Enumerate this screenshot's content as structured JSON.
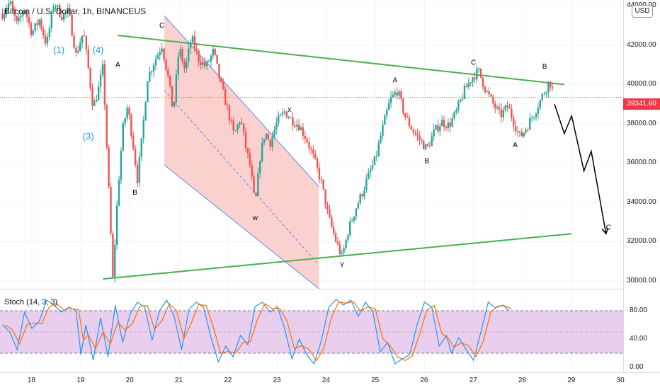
{
  "header": {
    "title": "Bitcoin / U.S. Dollar, 1h, BINANCEUS",
    "currency": "USD"
  },
  "current_price": {
    "value": 39341.6,
    "label": "39341.60",
    "color": "#f23645"
  },
  "colors": {
    "up_candle": "#26a69a",
    "down_candle": "#ef5350",
    "channel_fill": "#f9c9c7",
    "channel_border": "#5b8def",
    "trendline": "#4caf50",
    "stoch_k": "#2196f3",
    "stoch_d": "#ff6d00",
    "stoch_band": "#e1bee7",
    "wave_label": "#2196f3",
    "projection": "#000000"
  },
  "indicator": {
    "name": "Stoch (14, 3, 3)",
    "upper_band": 80,
    "lower_band": 20,
    "axis_labels": [
      "80.00",
      "40.00",
      "0.00"
    ]
  },
  "chart_data": {
    "type": "candlestick",
    "price_axis": {
      "ylim": [
        29600,
        44300
      ],
      "tick_labels": [
        "44000.00",
        "42000.00",
        "40000.00",
        "38000.00",
        "36000.00",
        "34000.00",
        "32000.00",
        "30000.00"
      ],
      "tick_values": [
        44000,
        42000,
        40000,
        38000,
        36000,
        34000,
        32000,
        30000
      ]
    },
    "time_axis": {
      "tick_labels": [
        "18",
        "19",
        "20",
        "21",
        "22",
        "23",
        "24",
        "25",
        "26",
        "27",
        "28",
        "29",
        "30"
      ],
      "xlim": [
        17.35,
        30.05
      ]
    },
    "price_path": [
      [
        17.4,
        43600
      ],
      [
        17.55,
        44200
      ],
      [
        17.7,
        43000
      ],
      [
        17.85,
        43900
      ],
      [
        18.0,
        42600
      ],
      [
        18.15,
        43300
      ],
      [
        18.3,
        42000
      ],
      [
        18.45,
        44200
      ],
      [
        18.6,
        43500
      ],
      [
        18.75,
        43700
      ],
      [
        18.9,
        41500
      ],
      [
        19.05,
        42700
      ],
      [
        19.15,
        40800
      ],
      [
        19.25,
        38800
      ],
      [
        19.35,
        39700
      ],
      [
        19.45,
        40900
      ],
      [
        19.55,
        35500
      ],
      [
        19.65,
        30100
      ],
      [
        19.75,
        34500
      ],
      [
        19.85,
        37700
      ],
      [
        19.95,
        38900
      ],
      [
        20.05,
        37200
      ],
      [
        20.15,
        35200
      ],
      [
        20.25,
        37400
      ],
      [
        20.35,
        40300
      ],
      [
        20.5,
        41200
      ],
      [
        20.65,
        42000
      ],
      [
        20.78,
        40300
      ],
      [
        20.88,
        38600
      ],
      [
        21.0,
        41900
      ],
      [
        21.12,
        40700
      ],
      [
        21.25,
        42400
      ],
      [
        21.4,
        41300
      ],
      [
        21.55,
        40900
      ],
      [
        21.7,
        41700
      ],
      [
        21.85,
        40000
      ],
      [
        22.0,
        38600
      ],
      [
        22.12,
        37400
      ],
      [
        22.25,
        38300
      ],
      [
        22.35,
        36900
      ],
      [
        22.45,
        35800
      ],
      [
        22.55,
        33800
      ],
      [
        22.65,
        36300
      ],
      [
        22.75,
        37600
      ],
      [
        22.85,
        37000
      ],
      [
        23.0,
        38100
      ],
      [
        23.15,
        38600
      ],
      [
        23.3,
        38200
      ],
      [
        23.45,
        37900
      ],
      [
        23.6,
        37200
      ],
      [
        23.75,
        36200
      ],
      [
        23.9,
        35000
      ],
      [
        24.05,
        33200
      ],
      [
        24.2,
        32000
      ],
      [
        24.32,
        31200
      ],
      [
        24.45,
        32600
      ],
      [
        24.6,
        33700
      ],
      [
        24.75,
        34600
      ],
      [
        24.88,
        35500
      ],
      [
        25.0,
        36200
      ],
      [
        25.15,
        37800
      ],
      [
        25.3,
        39200
      ],
      [
        25.45,
        39700
      ],
      [
        25.6,
        38400
      ],
      [
        25.75,
        37700
      ],
      [
        25.9,
        37200
      ],
      [
        26.05,
        36700
      ],
      [
        26.2,
        37600
      ],
      [
        26.35,
        38100
      ],
      [
        26.5,
        37900
      ],
      [
        26.65,
        38600
      ],
      [
        26.8,
        39600
      ],
      [
        26.95,
        40300
      ],
      [
        27.1,
        40700
      ],
      [
        27.25,
        39700
      ],
      [
        27.4,
        39000
      ],
      [
        27.55,
        38400
      ],
      [
        27.7,
        38900
      ],
      [
        27.85,
        37900
      ],
      [
        27.95,
        37300
      ],
      [
        28.1,
        37900
      ],
      [
        28.25,
        38600
      ],
      [
        28.4,
        39400
      ],
      [
        28.55,
        40200
      ],
      [
        28.65,
        39400
      ]
    ],
    "stoch_path": [
      [
        17.4,
        60
      ],
      [
        17.55,
        50
      ],
      [
        17.7,
        25
      ],
      [
        17.85,
        78
      ],
      [
        18.0,
        55
      ],
      [
        18.15,
        65
      ],
      [
        18.3,
        95
      ],
      [
        18.45,
        88
      ],
      [
        18.6,
        78
      ],
      [
        18.75,
        85
      ],
      [
        18.9,
        80
      ],
      [
        19.0,
        18
      ],
      [
        19.1,
        60
      ],
      [
        19.25,
        10
      ],
      [
        19.4,
        70
      ],
      [
        19.55,
        15
      ],
      [
        19.7,
        88
      ],
      [
        19.85,
        35
      ],
      [
        20.0,
        75
      ],
      [
        20.15,
        92
      ],
      [
        20.3,
        85
      ],
      [
        20.45,
        38
      ],
      [
        20.6,
        80
      ],
      [
        20.75,
        95
      ],
      [
        20.9,
        72
      ],
      [
        21.05,
        25
      ],
      [
        21.2,
        82
      ],
      [
        21.35,
        92
      ],
      [
        21.5,
        85
      ],
      [
        21.65,
        42
      ],
      [
        21.8,
        8
      ],
      [
        21.95,
        30
      ],
      [
        22.1,
        15
      ],
      [
        22.25,
        45
      ],
      [
        22.4,
        32
      ],
      [
        22.55,
        86
      ],
      [
        22.7,
        92
      ],
      [
        22.85,
        78
      ],
      [
        23.0,
        86
      ],
      [
        23.15,
        55
      ],
      [
        23.3,
        12
      ],
      [
        23.45,
        40
      ],
      [
        23.6,
        18
      ],
      [
        23.75,
        5
      ],
      [
        23.9,
        38
      ],
      [
        24.05,
        85
      ],
      [
        24.2,
        96
      ],
      [
        24.35,
        88
      ],
      [
        24.5,
        95
      ],
      [
        24.65,
        72
      ],
      [
        24.8,
        92
      ],
      [
        24.95,
        78
      ],
      [
        25.1,
        22
      ],
      [
        25.25,
        35
      ],
      [
        25.4,
        5
      ],
      [
        25.55,
        12
      ],
      [
        25.7,
        18
      ],
      [
        25.85,
        60
      ],
      [
        26.0,
        92
      ],
      [
        26.15,
        85
      ],
      [
        26.3,
        30
      ],
      [
        26.45,
        45
      ],
      [
        26.55,
        20
      ],
      [
        26.7,
        42
      ],
      [
        26.85,
        25
      ],
      [
        27.0,
        10
      ],
      [
        27.15,
        50
      ],
      [
        27.3,
        92
      ],
      [
        27.45,
        84
      ],
      [
        27.6,
        88
      ],
      [
        27.72,
        80
      ]
    ],
    "trendlines": [
      {
        "from": [
          19.75,
          42500
        ],
        "to": [
          28.85,
          40000
        ]
      },
      {
        "from": [
          19.45,
          30100
        ],
        "to": [
          29.0,
          32400
        ]
      }
    ],
    "channel": {
      "upper": {
        "from": [
          20.7,
          43500
        ],
        "to": [
          23.85,
          34800
        ]
      },
      "lower": {
        "from": [
          20.7,
          35900
        ],
        "to": [
          23.85,
          29600
        ]
      },
      "midline": {
        "from": [
          20.7,
          39700
        ],
        "to": [
          23.85,
          30800
        ]
      },
      "right_edge_x": 23.85
    },
    "projection_path": [
      [
        28.65,
        39000
      ],
      [
        28.85,
        37500
      ],
      [
        29.0,
        38400
      ],
      [
        29.25,
        35600
      ],
      [
        29.4,
        36600
      ],
      [
        29.7,
        32400
      ]
    ],
    "wave_labels": [
      {
        "text": "(1)",
        "at": [
          18.55,
          41600
        ],
        "color": "#2196f3"
      },
      {
        "text": "(4)",
        "at": [
          19.35,
          41600
        ],
        "color": "#2196f3"
      },
      {
        "text": "(3)",
        "at": [
          19.15,
          37200
        ],
        "color": "#2196f3"
      },
      {
        "text": "A",
        "at": [
          19.75,
          40900
        ],
        "color": "#000000"
      },
      {
        "text": "B",
        "at": [
          20.1,
          34400
        ],
        "color": "#000000"
      },
      {
        "text": "C",
        "at": [
          20.65,
          42900
        ],
        "color": "#000000"
      },
      {
        "text": "w",
        "at": [
          22.55,
          33100
        ],
        "color": "#000000"
      },
      {
        "text": "x",
        "at": [
          23.25,
          38600
        ],
        "color": "#000000"
      },
      {
        "text": "Y",
        "at": [
          24.32,
          30700
        ],
        "color": "#000000"
      },
      {
        "text": "A",
        "at": [
          25.4,
          40100
        ],
        "color": "#000000"
      },
      {
        "text": "B",
        "at": [
          26.05,
          36000
        ],
        "color": "#000000"
      },
      {
        "text": "C",
        "at": [
          27.0,
          41000
        ],
        "color": "#000000"
      },
      {
        "text": "A",
        "at": [
          27.85,
          36800
        ],
        "color": "#000000"
      },
      {
        "text": "B",
        "at": [
          28.45,
          40800
        ],
        "color": "#000000"
      },
      {
        "text": "C",
        "at": [
          29.75,
          32600
        ],
        "color": "#000000"
      }
    ]
  }
}
